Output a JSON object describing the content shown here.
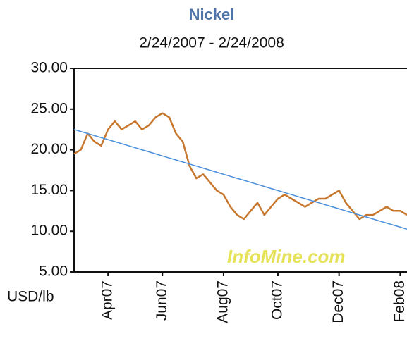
{
  "chart_data": {
    "type": "line",
    "title": "Nickel",
    "subtitle": "2/24/2007 - 2/24/2008",
    "y_label": "USD/lb",
    "watermark": "InfoMine.com",
    "categories": [
      null,
      null,
      null,
      null,
      null,
      "Apr07",
      null,
      null,
      null,
      null,
      null,
      null,
      null,
      "Jun07",
      null,
      null,
      null,
      null,
      null,
      null,
      null,
      null,
      "Aug07",
      null,
      null,
      null,
      null,
      null,
      null,
      null,
      "Oct07",
      null,
      null,
      null,
      null,
      null,
      null,
      null,
      null,
      "Dec07",
      null,
      null,
      null,
      null,
      null,
      null,
      null,
      null,
      "Feb08",
      null
    ],
    "series": [
      {
        "color": "#c8782e",
        "values": [
          19.5,
          20,
          22,
          21,
          20.5,
          22.5,
          23.5,
          22.5,
          23,
          23.5,
          22.5,
          23,
          24,
          24.5,
          24,
          22,
          21,
          18,
          16.5,
          17,
          16,
          15,
          14.5,
          13,
          12,
          11.5,
          12.5,
          13.5,
          12,
          13,
          14,
          14.5,
          14,
          13.5,
          13,
          13.5,
          14,
          14,
          14.5,
          15,
          13.5,
          12.5,
          11.5,
          12,
          12,
          12.5,
          13,
          12.5,
          12.5,
          12
        ]
      },
      {
        "color": "#4a8fdc",
        "values": [
          22.5,
          22.25,
          22,
          21.75,
          21.5,
          21.25,
          21,
          20.75,
          20.5,
          20.25,
          20,
          19.75,
          19.5,
          19.25,
          19,
          18.75,
          18.5,
          18.25,
          18,
          17.75,
          17.5,
          17.25,
          17,
          16.75,
          16.5,
          16.25,
          16,
          15.75,
          15.5,
          15.25,
          15,
          14.75,
          14.5,
          14.25,
          14,
          13.75,
          13.5,
          13.25,
          13,
          12.75,
          12.5,
          12.25,
          12,
          11.75,
          11.5,
          11.25,
          11,
          10.75,
          10.5,
          10.25
        ]
      }
    ],
    "ylim": [
      5,
      30
    ],
    "yticks": [
      {
        "value": 5,
        "label": "5.00"
      },
      {
        "value": 10,
        "label": "10.00"
      },
      {
        "value": 15,
        "label": "15.00"
      },
      {
        "value": 20,
        "label": "20.00"
      },
      {
        "value": 25,
        "label": "25.00"
      },
      {
        "value": 30,
        "label": "30.00"
      }
    ]
  }
}
